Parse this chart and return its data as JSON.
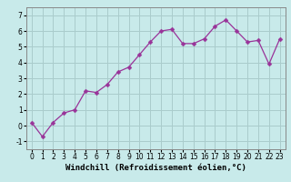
{
  "xlabel": "Windchill (Refroidissement éolien,°C)",
  "x_values": [
    0,
    1,
    2,
    3,
    4,
    5,
    6,
    7,
    8,
    9,
    10,
    11,
    12,
    13,
    14,
    15,
    16,
    17,
    18,
    19,
    20,
    21,
    22,
    23
  ],
  "y_values": [
    0.2,
    -0.7,
    0.2,
    0.8,
    1.0,
    2.2,
    2.1,
    2.6,
    3.4,
    3.7,
    4.5,
    5.3,
    6.0,
    6.1,
    5.2,
    5.2,
    5.5,
    6.3,
    6.7,
    6.0,
    5.3,
    5.4,
    3.9,
    5.5
  ],
  "line_color": "#993399",
  "marker": "D",
  "marker_size": 2.5,
  "bg_color": "#c8eaea",
  "grid_color": "#aacccc",
  "ylim": [
    -1.5,
    7.5
  ],
  "xlim": [
    -0.5,
    23.5
  ],
  "yticks": [
    -1,
    0,
    1,
    2,
    3,
    4,
    5,
    6,
    7
  ],
  "xticks": [
    0,
    1,
    2,
    3,
    4,
    5,
    6,
    7,
    8,
    9,
    10,
    11,
    12,
    13,
    14,
    15,
    16,
    17,
    18,
    19,
    20,
    21,
    22,
    23
  ],
  "tick_fontsize": 5.5,
  "label_fontsize": 6.5
}
